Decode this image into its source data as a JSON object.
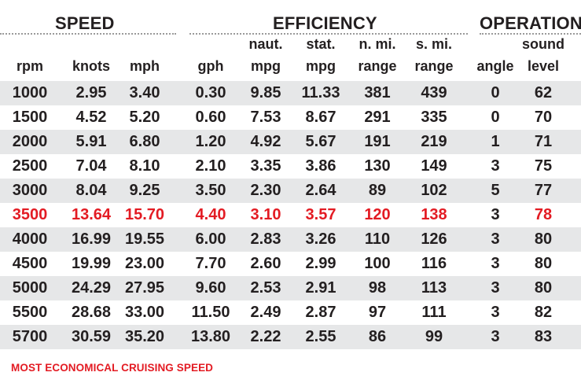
{
  "groups": {
    "speed": "SPEED",
    "efficiency": "EFFICIENCY",
    "operation": "OPERATION"
  },
  "headers": [
    {
      "key": "rpm",
      "line1": "",
      "line2": "rpm"
    },
    {
      "key": "knots",
      "line1": "",
      "line2": "knots"
    },
    {
      "key": "mph",
      "line1": "",
      "line2": "mph"
    },
    {
      "key": "gph",
      "line1": "",
      "line2": "gph"
    },
    {
      "key": "naut_mpg",
      "line1": "naut.",
      "line2": "mpg"
    },
    {
      "key": "stat_mpg",
      "line1": "stat.",
      "line2": "mpg"
    },
    {
      "key": "n_mi_range",
      "line1": "n. mi.",
      "line2": "range"
    },
    {
      "key": "s_mi_range",
      "line1": "s. mi.",
      "line2": "range"
    },
    {
      "key": "angle",
      "line1": "",
      "line2": "angle"
    },
    {
      "key": "sound_level",
      "line1": "sound",
      "line2": "level"
    }
  ],
  "rows": [
    {
      "highlight": false,
      "cells": [
        "1000",
        "2.95",
        "3.40",
        "0.30",
        "9.85",
        "11.33",
        "381",
        "439",
        "0",
        "62"
      ]
    },
    {
      "highlight": false,
      "cells": [
        "1500",
        "4.52",
        "5.20",
        "0.60",
        "7.53",
        "8.67",
        "291",
        "335",
        "0",
        "70"
      ]
    },
    {
      "highlight": false,
      "cells": [
        "2000",
        "5.91",
        "6.80",
        "1.20",
        "4.92",
        "5.67",
        "191",
        "219",
        "1",
        "71"
      ]
    },
    {
      "highlight": false,
      "cells": [
        "2500",
        "7.04",
        "8.10",
        "2.10",
        "3.35",
        "3.86",
        "130",
        "149",
        "3",
        "75"
      ]
    },
    {
      "highlight": false,
      "cells": [
        "3000",
        "8.04",
        "9.25",
        "3.50",
        "2.30",
        "2.64",
        "89",
        "102",
        "5",
        "77"
      ]
    },
    {
      "highlight": true,
      "cells": [
        "3500",
        "13.64",
        "15.70",
        "4.40",
        "3.10",
        "3.57",
        "120",
        "138",
        "3",
        "78"
      ]
    },
    {
      "highlight": false,
      "cells": [
        "4000",
        "16.99",
        "19.55",
        "6.00",
        "2.83",
        "3.26",
        "110",
        "126",
        "3",
        "80"
      ]
    },
    {
      "highlight": false,
      "cells": [
        "4500",
        "19.99",
        "23.00",
        "7.70",
        "2.60",
        "2.99",
        "100",
        "116",
        "3",
        "80"
      ]
    },
    {
      "highlight": false,
      "cells": [
        "5000",
        "24.29",
        "27.95",
        "9.60",
        "2.53",
        "2.91",
        "98",
        "113",
        "3",
        "80"
      ]
    },
    {
      "highlight": false,
      "cells": [
        "5500",
        "28.68",
        "33.00",
        "11.50",
        "2.49",
        "2.87",
        "97",
        "111",
        "3",
        "82"
      ]
    },
    {
      "highlight": false,
      "cells": [
        "5700",
        "30.59",
        "35.20",
        "13.80",
        "2.22",
        "2.55",
        "86",
        "99",
        "3",
        "83"
      ]
    }
  ],
  "footnote": "MOST ECONOMICAL CRUISING SPEED",
  "colors": {
    "text": "#231f20",
    "highlight": "#e31b23",
    "row_shade": "#e6e7e8",
    "rule": "#9a9a9a"
  }
}
